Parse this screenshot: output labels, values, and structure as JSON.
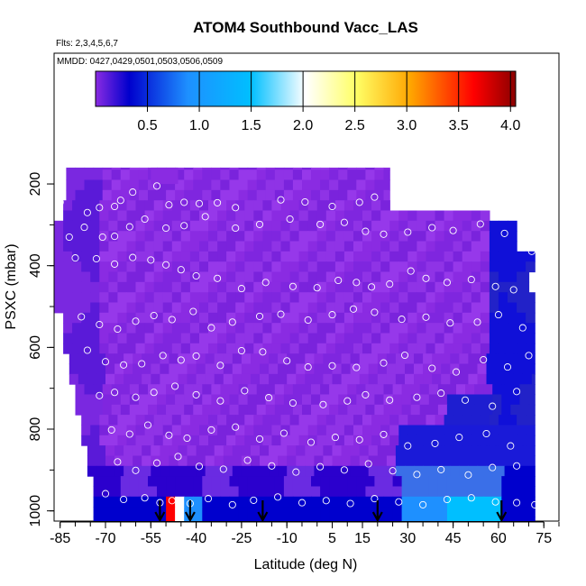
{
  "chart_data": {
    "type": "heatmap",
    "title": "ATOM4 Southbound Vacc_LAS",
    "flights_label": "Flts: 2,3,4,5,6,7",
    "dates_label": "MMDD: 0427,0429,0501,0503,0506,0509",
    "xlabel": "Latitude (deg N)",
    "ylabel": "PSXC (mbar)",
    "xlim": [
      -87,
      80
    ],
    "ylim": [
      1025,
      -120
    ],
    "x_ticks": [
      "-85",
      "-70",
      "-55",
      "-40",
      "-25",
      "-10",
      "5",
      "15",
      "30",
      "45",
      "60",
      "75"
    ],
    "y_ticks": [
      "200",
      "400",
      "600",
      "800",
      "1000"
    ],
    "colorbar": {
      "min": 0,
      "max": 4.05,
      "ticks": [
        "0.5",
        "1.0",
        "1.5",
        "2.0",
        "2.5",
        "3.0",
        "3.5",
        "4.0"
      ],
      "palette": [
        "#8a2be2",
        "#0000cd",
        "#1e90ff",
        "#00bfff",
        "#ffffff",
        "#ffff66",
        "#ffa500",
        "#ff0000",
        "#8b0000"
      ]
    },
    "field_description_values": {
      "dominant_value": 0.2,
      "lower_troposphere_range": [
        0.5,
        1.6
      ],
      "surface_max": 4.0
    },
    "arrow_latitudes": [
      -52,
      -42,
      -18,
      20,
      61
    ],
    "sample_points": [
      [
        -85,
        245
      ],
      [
        -76,
        270
      ],
      [
        -72,
        258
      ],
      [
        -67,
        255
      ],
      [
        -65,
        240
      ],
      [
        -61,
        220
      ],
      [
        -53,
        205
      ],
      [
        -49,
        251
      ],
      [
        -44,
        245
      ],
      [
        -39,
        248
      ],
      [
        -33,
        246
      ],
      [
        -27,
        258
      ],
      [
        -12,
        239
      ],
      [
        -4,
        244
      ],
      [
        5,
        255
      ],
      [
        14,
        245
      ],
      [
        19,
        232
      ],
      [
        26,
        241
      ],
      [
        30,
        248
      ],
      [
        37,
        243
      ],
      [
        44,
        249
      ],
      [
        52,
        248
      ],
      [
        57,
        248
      ],
      [
        -82,
        330
      ],
      [
        -77,
        306
      ],
      [
        -71,
        330
      ],
      [
        -67,
        328
      ],
      [
        -62,
        305
      ],
      [
        -57,
        286
      ],
      [
        -50,
        308
      ],
      [
        -44,
        302
      ],
      [
        -37,
        280
      ],
      [
        -27,
        308
      ],
      [
        -19,
        299
      ],
      [
        -9,
        286
      ],
      [
        1,
        299
      ],
      [
        9,
        294
      ],
      [
        16,
        316
      ],
      [
        22,
        323
      ],
      [
        30,
        318
      ],
      [
        38,
        307
      ],
      [
        45,
        314
      ],
      [
        54,
        298
      ],
      [
        62,
        321
      ],
      [
        71,
        365
      ],
      [
        -80,
        381
      ],
      [
        -73,
        383
      ],
      [
        -67,
        396
      ],
      [
        -61,
        380
      ],
      [
        -55,
        386
      ],
      [
        -50,
        398
      ],
      [
        -45,
        410
      ],
      [
        -40,
        425
      ],
      [
        -33,
        431
      ],
      [
        -25,
        456
      ],
      [
        -17,
        441
      ],
      [
        -8,
        451
      ],
      [
        0,
        454
      ],
      [
        7,
        436
      ],
      [
        13,
        441
      ],
      [
        18,
        452
      ],
      [
        24,
        445
      ],
      [
        31,
        413
      ],
      [
        36,
        431
      ],
      [
        43,
        441
      ],
      [
        51,
        434
      ],
      [
        59,
        451
      ],
      [
        65,
        459
      ],
      [
        -78,
        525
      ],
      [
        -72,
        544
      ],
      [
        -66,
        555
      ],
      [
        -60,
        536
      ],
      [
        -54,
        522
      ],
      [
        -48,
        532
      ],
      [
        -41,
        512
      ],
      [
        -35,
        552
      ],
      [
        -28,
        538
      ],
      [
        -19,
        524
      ],
      [
        -12,
        519
      ],
      [
        -3,
        533
      ],
      [
        5,
        520
      ],
      [
        12,
        506
      ],
      [
        19,
        514
      ],
      [
        28,
        531
      ],
      [
        36,
        526
      ],
      [
        44,
        540
      ],
      [
        53,
        538
      ],
      [
        60,
        520
      ],
      [
        68,
        552
      ],
      [
        -76,
        607
      ],
      [
        -70,
        635
      ],
      [
        -64,
        643
      ],
      [
        -58,
        640
      ],
      [
        -51,
        620
      ],
      [
        -45,
        631
      ],
      [
        -40,
        621
      ],
      [
        -32,
        644
      ],
      [
        -25,
        608
      ],
      [
        -18,
        611
      ],
      [
        -10,
        633
      ],
      [
        -3,
        648
      ],
      [
        5,
        645
      ],
      [
        13,
        649
      ],
      [
        22,
        638
      ],
      [
        29,
        619
      ],
      [
        38,
        651
      ],
      [
        46,
        660
      ],
      [
        55,
        630
      ],
      [
        63,
        648
      ],
      [
        70,
        620
      ],
      [
        -72,
        718
      ],
      [
        -67,
        710
      ],
      [
        -60,
        722
      ],
      [
        -54,
        710
      ],
      [
        -47,
        695
      ],
      [
        -40,
        716
      ],
      [
        -32,
        731
      ],
      [
        -24,
        706
      ],
      [
        -16,
        723
      ],
      [
        -8,
        736
      ],
      [
        2,
        740
      ],
      [
        10,
        731
      ],
      [
        16,
        716
      ],
      [
        24,
        729
      ],
      [
        33,
        722
      ],
      [
        41,
        712
      ],
      [
        49,
        729
      ],
      [
        58,
        744
      ],
      [
        66,
        708
      ],
      [
        -68,
        802
      ],
      [
        -62,
        812
      ],
      [
        -56,
        790
      ],
      [
        -49,
        815
      ],
      [
        -43,
        822
      ],
      [
        -35,
        802
      ],
      [
        -27,
        795
      ],
      [
        -19,
        824
      ],
      [
        -11,
        810
      ],
      [
        -2,
        832
      ],
      [
        6,
        820
      ],
      [
        14,
        826
      ],
      [
        22,
        813
      ],
      [
        30,
        841
      ],
      [
        39,
        835
      ],
      [
        47,
        820
      ],
      [
        56,
        811
      ],
      [
        64,
        841
      ],
      [
        -66,
        880
      ],
      [
        -60,
        901
      ],
      [
        -53,
        883
      ],
      [
        -46,
        867
      ],
      [
        -39,
        891
      ],
      [
        -31,
        898
      ],
      [
        -23,
        876
      ],
      [
        -15,
        890
      ],
      [
        -7,
        905
      ],
      [
        1,
        892
      ],
      [
        9,
        900
      ],
      [
        17,
        885
      ],
      [
        25,
        902
      ],
      [
        33,
        911
      ],
      [
        41,
        899
      ],
      [
        50,
        912
      ],
      [
        58,
        894
      ],
      [
        66,
        890
      ],
      [
        -70,
        958
      ],
      [
        -64,
        972
      ],
      [
        -57,
        968
      ],
      [
        -52,
        980
      ],
      [
        -48,
        975
      ],
      [
        -42,
        982
      ],
      [
        -36,
        970
      ],
      [
        -28,
        985
      ],
      [
        -21,
        974
      ],
      [
        -13,
        966
      ],
      [
        -5,
        980
      ],
      [
        3,
        975
      ],
      [
        11,
        982
      ],
      [
        19,
        970
      ],
      [
        27,
        978
      ],
      [
        35,
        985
      ],
      [
        43,
        972
      ],
      [
        51,
        968
      ],
      [
        59,
        978
      ],
      [
        66,
        980
      ],
      [
        72,
        985
      ]
    ]
  }
}
